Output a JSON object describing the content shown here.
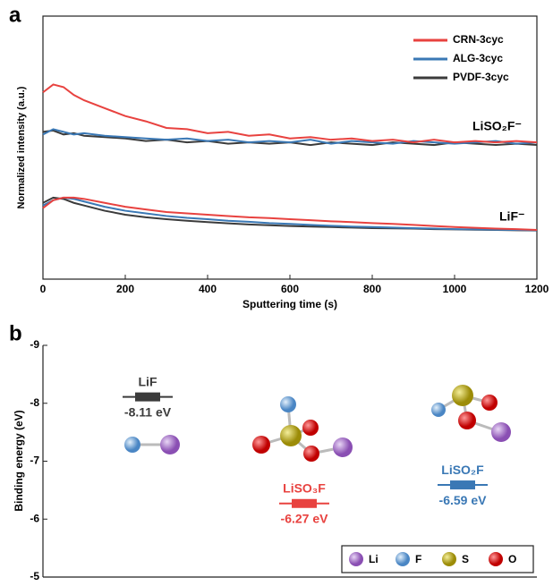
{
  "chart_data": [
    {
      "type": "line",
      "panel_label": "a",
      "xlabel": "Sputtering time (s)",
      "ylabel": "Normalized intensity (a.u.)",
      "xlim": [
        0,
        1200
      ],
      "xticks": [
        0,
        200,
        400,
        600,
        800,
        1000,
        1200
      ],
      "ylim": [
        0,
        1
      ],
      "x": [
        0,
        25,
        50,
        75,
        100,
        150,
        200,
        250,
        300,
        350,
        400,
        450,
        500,
        550,
        600,
        650,
        700,
        750,
        800,
        850,
        900,
        950,
        1000,
        1050,
        1100,
        1150,
        1200
      ],
      "annotations": [
        "LiSO₂F⁻",
        "LiF⁻"
      ],
      "series": [
        {
          "name": "CRN-3cyc",
          "color": "#e8423f",
          "values": [
            0.71,
            0.74,
            0.73,
            0.7,
            0.68,
            0.65,
            0.62,
            0.6,
            0.575,
            0.57,
            0.555,
            0.56,
            0.545,
            0.55,
            0.535,
            0.54,
            0.53,
            0.535,
            0.525,
            0.53,
            0.52,
            0.53,
            0.52,
            0.525,
            0.52,
            0.525,
            0.52
          ],
          "values_lif": [
            0.27,
            0.3,
            0.31,
            0.31,
            0.305,
            0.29,
            0.275,
            0.265,
            0.255,
            0.25,
            0.245,
            0.24,
            0.235,
            0.232,
            0.228,
            0.224,
            0.22,
            0.217,
            0.213,
            0.21,
            0.206,
            0.202,
            0.198,
            0.195,
            0.192,
            0.19,
            0.187
          ]
        },
        {
          "name": "ALG-3cyc",
          "color": "#3a78b5",
          "values": [
            0.55,
            0.57,
            0.56,
            0.55,
            0.555,
            0.545,
            0.54,
            0.535,
            0.53,
            0.535,
            0.525,
            0.53,
            0.52,
            0.525,
            0.52,
            0.53,
            0.515,
            0.525,
            0.52,
            0.515,
            0.525,
            0.52,
            0.515,
            0.52,
            0.525,
            0.515,
            0.52
          ],
          "values_lif": [
            0.28,
            0.3,
            0.31,
            0.305,
            0.295,
            0.275,
            0.26,
            0.25,
            0.24,
            0.233,
            0.228,
            0.222,
            0.218,
            0.213,
            0.21,
            0.206,
            0.203,
            0.2,
            0.198,
            0.196,
            0.194,
            0.192,
            0.19,
            0.189,
            0.188,
            0.187,
            0.186
          ]
        },
        {
          "name": "PVDF-3cyc",
          "color": "#3b3b3b",
          "values": [
            0.56,
            0.565,
            0.55,
            0.555,
            0.545,
            0.54,
            0.535,
            0.525,
            0.53,
            0.52,
            0.525,
            0.515,
            0.52,
            0.515,
            0.52,
            0.51,
            0.52,
            0.515,
            0.51,
            0.52,
            0.515,
            0.51,
            0.52,
            0.515,
            0.51,
            0.515,
            0.51
          ],
          "values_lif": [
            0.29,
            0.31,
            0.305,
            0.29,
            0.28,
            0.26,
            0.245,
            0.235,
            0.228,
            0.222,
            0.217,
            0.212,
            0.208,
            0.205,
            0.202,
            0.2,
            0.198,
            0.196,
            0.194,
            0.193,
            0.192,
            0.19,
            0.189,
            0.188,
            0.187,
            0.186,
            0.185
          ]
        }
      ]
    },
    {
      "type": "level",
      "panel_label": "b",
      "ylabel": "Binding energy (eV)",
      "ylim": [
        -9,
        -5
      ],
      "inverted": true,
      "yticks": [
        -9,
        -8,
        -7,
        -6,
        -5
      ],
      "categories": [
        "LiF",
        "LiSO₃F",
        "LiSO₂F"
      ],
      "colors": [
        "#3b3b3b",
        "#e8423f",
        "#3a78b5"
      ],
      "values": [
        -8.11,
        -6.27,
        -6.59
      ],
      "value_labels": [
        "-8.11 eV",
        "-6.27 eV",
        "-6.59 eV"
      ],
      "atom_legend": [
        {
          "label": "Li",
          "color": "#9b5fc0"
        },
        {
          "label": "F",
          "color": "#6fa8dc"
        },
        {
          "label": "S",
          "color": "#c4b31a"
        },
        {
          "label": "O",
          "color": "#e01010"
        }
      ]
    }
  ]
}
